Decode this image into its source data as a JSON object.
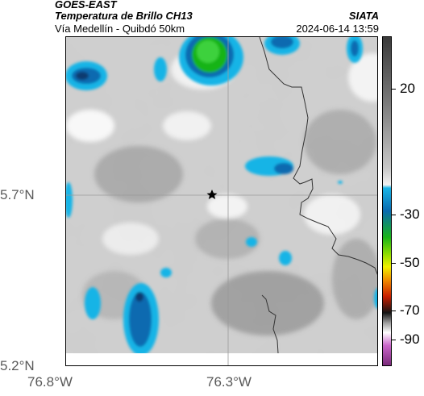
{
  "header": {
    "satellite": "GOES-EAST",
    "product": "Temperatura de Brillo CH13",
    "region": "Vía Medellín - Quibdó 50km",
    "organization": "SIATA",
    "timestamp": "2024-06-14 13:59"
  },
  "map": {
    "lat_labels": [
      "5.7°N",
      "5.2°N"
    ],
    "lon_labels": [
      "76.8°W",
      "76.3°W"
    ],
    "marker": "star"
  },
  "colorbar": {
    "tick_labels": [
      "20",
      "-30",
      "-50",
      "-70",
      "-90"
    ],
    "colors": {
      "gray_light": "#f2f2f2",
      "gray_dark": "#3a3a3a",
      "cyan": "#19b4e6",
      "blue": "#0a6bb0",
      "green": "#19b419",
      "yellow": "#f0f000",
      "orange": "#f08c00",
      "red": "#c81e00",
      "black": "#141414",
      "magenta": "#c864c8"
    }
  }
}
